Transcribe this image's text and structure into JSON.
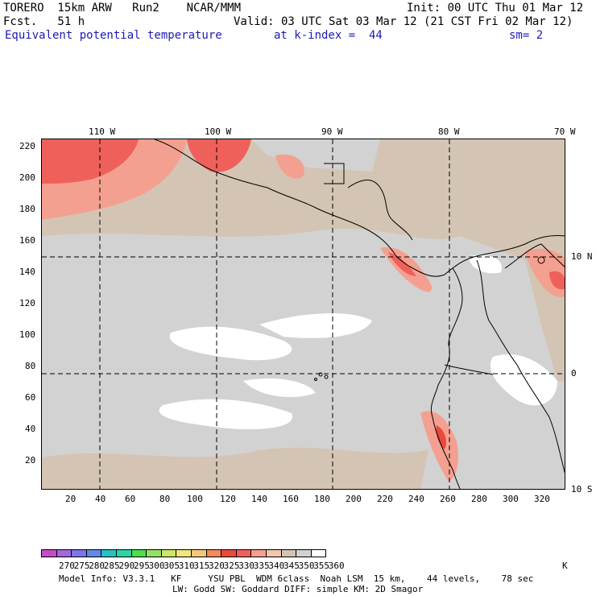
{
  "header": {
    "model": "TORERO  15km ARW   Run2    NCAR/MMM",
    "init": "Init: 00 UTC Thu 01 Mar 12",
    "fcst": "Fcst.   51 h",
    "valid": "Valid: 03 UTC Sat 03 Mar 12 (21 CST Fri 02 Mar 12)",
    "field": "Equivalent potential temperature",
    "level": "at k-index =  44",
    "smoothing": "sm= 2"
  },
  "map": {
    "lon_labels": [
      "110 W",
      "100 W",
      "90 W",
      "80 W",
      "70 W"
    ],
    "lat_labels": [
      "10 N",
      "0",
      "10 S"
    ],
    "x_ticks": [
      "20",
      "40",
      "60",
      "80",
      "100",
      "120",
      "140",
      "160",
      "180",
      "200",
      "220",
      "240",
      "260",
      "280",
      "300",
      "320"
    ],
    "y_ticks": [
      "220",
      "200",
      "180",
      "160",
      "140",
      "120",
      "100",
      "80",
      "60",
      "40",
      "20"
    ]
  },
  "colorbar": {
    "unit": "K",
    "labels": [
      "270",
      "275",
      "280",
      "285",
      "290",
      "295",
      "300",
      "305",
      "310",
      "315",
      "320",
      "325",
      "330",
      "335",
      "340",
      "345",
      "350",
      "355",
      "360"
    ],
    "colors": [
      "#c44ec4",
      "#a468d8",
      "#7d74e6",
      "#6488e6",
      "#28c0c0",
      "#28d6a4",
      "#50dc50",
      "#94e064",
      "#c8e66a",
      "#f0e67a",
      "#f4c878",
      "#f28a5a",
      "#e84a3c",
      "#f0605a",
      "#f4a090",
      "#f2c6ac",
      "#d4c4b4",
      "#d2d2d2",
      "#ffffff"
    ]
  },
  "footer": {
    "line1": "Model Info: V3.3.1   KF     YSU PBL  WDM 6class  Noah LSM  15 km,    44 levels,    78 sec",
    "line2": "LW: Godd SW: Goddard DIFF: simple KM: 2D Smagor"
  }
}
